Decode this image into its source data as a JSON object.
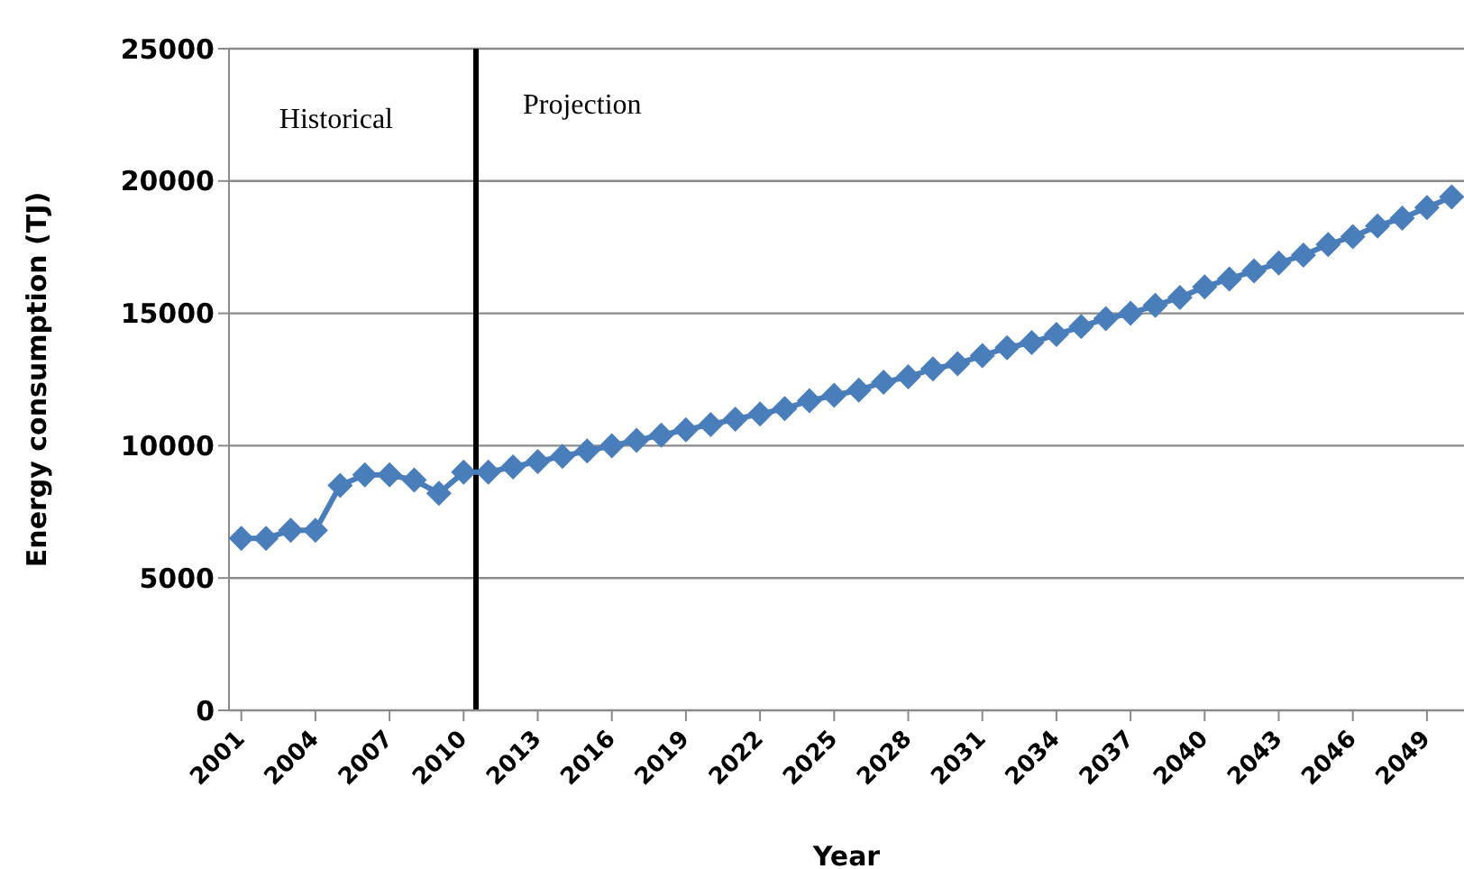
{
  "chart_data": {
    "type": "line",
    "xlabel": "Year",
    "ylabel": "Energy consumption (TJ)",
    "x": [
      2001,
      2002,
      2003,
      2004,
      2005,
      2006,
      2007,
      2008,
      2009,
      2010,
      2011,
      2012,
      2013,
      2014,
      2015,
      2016,
      2017,
      2018,
      2019,
      2020,
      2021,
      2022,
      2023,
      2024,
      2025,
      2026,
      2027,
      2028,
      2029,
      2030,
      2031,
      2032,
      2033,
      2034,
      2035,
      2036,
      2037,
      2038,
      2039,
      2040,
      2041,
      2042,
      2043,
      2044,
      2045,
      2046,
      2047,
      2048,
      2049,
      2050
    ],
    "series": [
      {
        "color": "#4a7ebb",
        "values": [
          6500,
          6500,
          6800,
          6800,
          8500,
          8900,
          8900,
          8700,
          8200,
          9000,
          9000,
          9200,
          9400,
          9600,
          9800,
          10000,
          10200,
          10400,
          10600,
          10800,
          11000,
          11200,
          11400,
          11700,
          11900,
          12100,
          12400,
          12600,
          12900,
          13100,
          13400,
          13700,
          13900,
          14200,
          14500,
          14800,
          15000,
          15300,
          15600,
          16000,
          16300,
          16600,
          16900,
          17200,
          17600,
          17900,
          18300,
          18600,
          19000,
          19400
        ]
      }
    ],
    "xlim": [
      2000.5,
      2050.5
    ],
    "xticks": [
      2001,
      2004,
      2007,
      2010,
      2013,
      2016,
      2019,
      2022,
      2025,
      2028,
      2031,
      2034,
      2037,
      2040,
      2043,
      2046,
      2049
    ],
    "ylim": [
      0,
      25000
    ],
    "yticks": [
      0,
      5000,
      10000,
      15000,
      20000,
      25000
    ],
    "ref_lines": [
      {
        "axis": "x",
        "value": 2010.5,
        "color": "#000000"
      }
    ],
    "annotations": [
      "Historical",
      "Projection"
    ],
    "grid": "y",
    "legend": false,
    "marker": "diamond",
    "line_style": "solid"
  }
}
